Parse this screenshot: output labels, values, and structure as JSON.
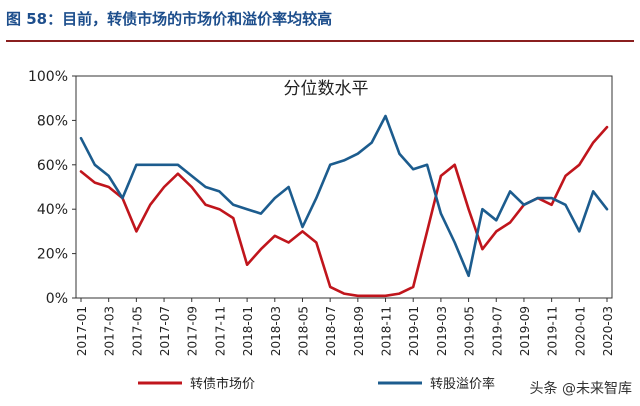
{
  "figure": {
    "title": "图 58：目前，转债市场的市场价和溢价率均较高"
  },
  "watermark": "头条 @未来智库",
  "colors": {
    "title": "#1d4e8c",
    "rule": "#8a1f1f",
    "series1": "#c0151c",
    "series2": "#1c5c8e",
    "axis": "#333333"
  },
  "chart_data": {
    "type": "line",
    "title": "分位数水平",
    "xlabel": "",
    "ylabel": "",
    "ylim": [
      0,
      1
    ],
    "yticks": [
      "0%",
      "20%",
      "40%",
      "60%",
      "80%",
      "100%"
    ],
    "xticks": [
      "2017-01",
      "2017-03",
      "2017-05",
      "2017-07",
      "2017-09",
      "2017-11",
      "2018-01",
      "2018-03",
      "2018-05",
      "2018-07",
      "2018-09",
      "2018-11",
      "2019-01",
      "2019-03",
      "2019-05",
      "2019-07",
      "2019-09",
      "2019-11",
      "2020-01",
      "2020-03"
    ],
    "grid": false,
    "legend": "bottom",
    "x": [
      "2017-01",
      "2017-02",
      "2017-03",
      "2017-04",
      "2017-05",
      "2017-06",
      "2017-07",
      "2017-08",
      "2017-09",
      "2017-10",
      "2017-11",
      "2017-12",
      "2018-01",
      "2018-02",
      "2018-03",
      "2018-04",
      "2018-05",
      "2018-06",
      "2018-07",
      "2018-08",
      "2018-09",
      "2018-10",
      "2018-11",
      "2018-12",
      "2019-01",
      "2019-02",
      "2019-03",
      "2019-04",
      "2019-05",
      "2019-06",
      "2019-07",
      "2019-08",
      "2019-09",
      "2019-10",
      "2019-11",
      "2019-12",
      "2020-01",
      "2020-02",
      "2020-03"
    ],
    "series": [
      {
        "name": "转债市场价",
        "values": [
          0.57,
          0.52,
          0.5,
          0.45,
          0.3,
          0.42,
          0.5,
          0.56,
          0.5,
          0.42,
          0.4,
          0.36,
          0.15,
          0.22,
          0.28,
          0.25,
          0.3,
          0.25,
          0.05,
          0.02,
          0.01,
          0.01,
          0.01,
          0.02,
          0.05,
          0.3,
          0.55,
          0.6,
          0.4,
          0.22,
          0.3,
          0.34,
          0.42,
          0.45,
          0.42,
          0.55,
          0.6,
          0.7,
          0.77
        ]
      },
      {
        "name": "转股溢价率",
        "values": [
          0.72,
          0.6,
          0.55,
          0.45,
          0.6,
          0.6,
          0.6,
          0.6,
          0.55,
          0.5,
          0.48,
          0.42,
          0.4,
          0.38,
          0.45,
          0.5,
          0.32,
          0.45,
          0.6,
          0.62,
          0.65,
          0.7,
          0.82,
          0.65,
          0.58,
          0.6,
          0.38,
          0.25,
          0.1,
          0.4,
          0.35,
          0.48,
          0.42,
          0.45,
          0.45,
          0.42,
          0.3,
          0.48,
          0.4
        ]
      }
    ]
  }
}
